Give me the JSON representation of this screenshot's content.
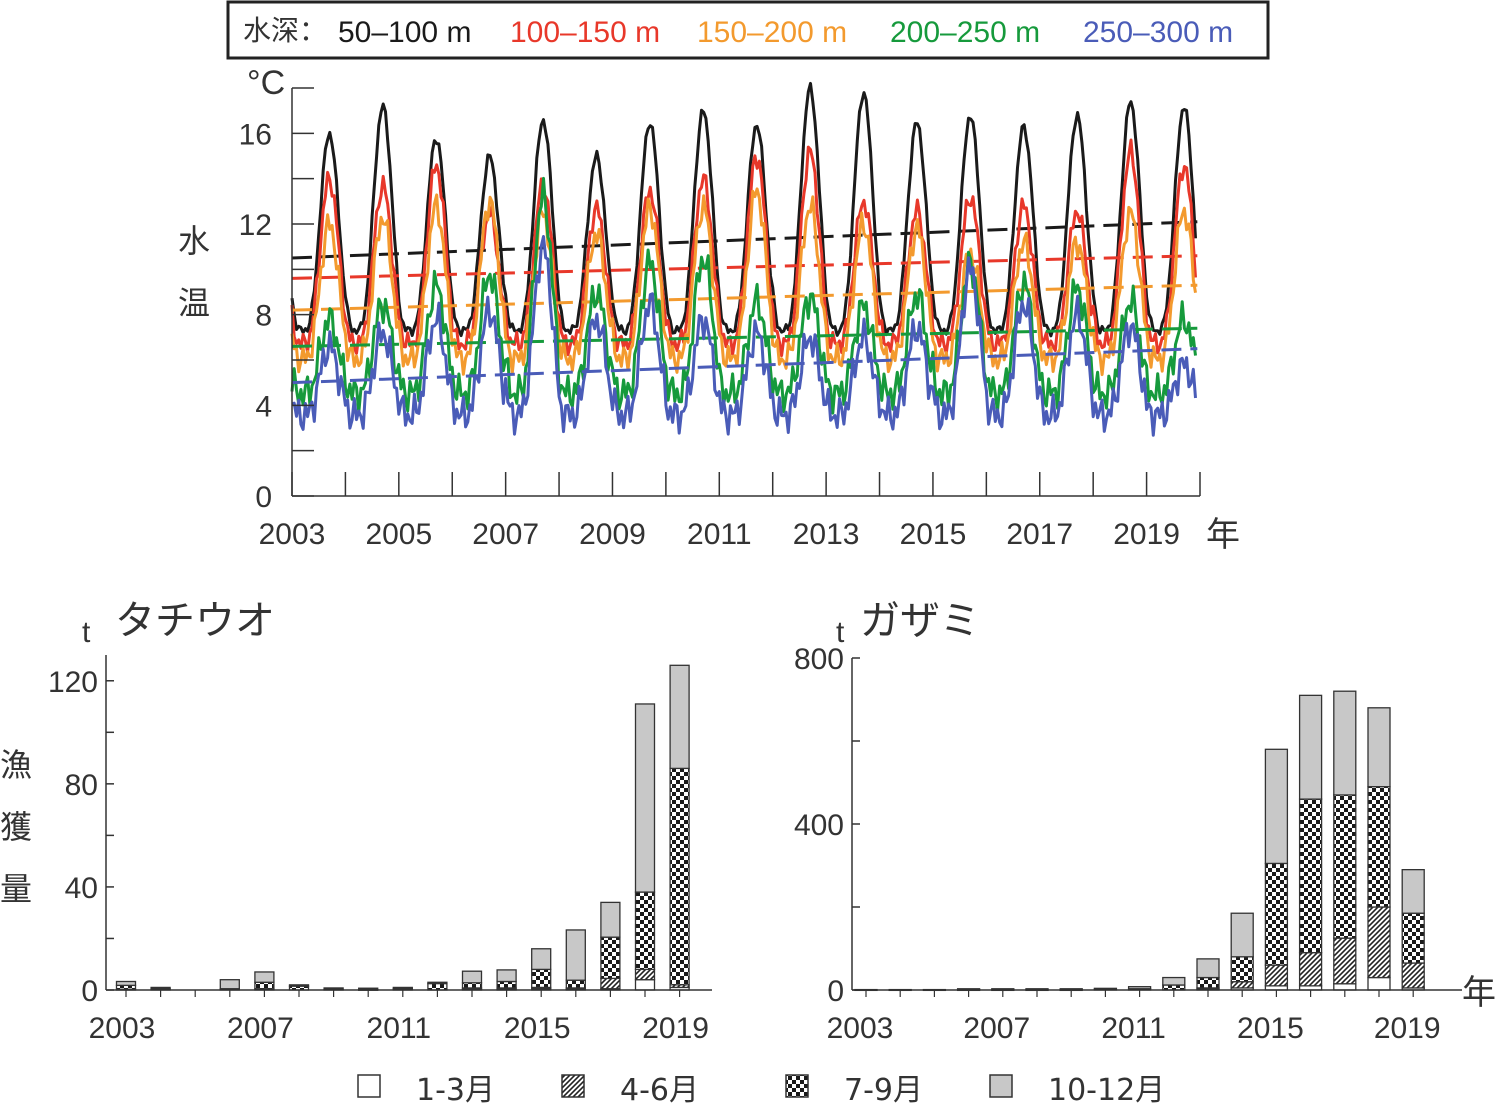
{
  "colors": {
    "depth_50_100": "#1a1a1a",
    "depth_100_150": "#e8382a",
    "depth_150_200": "#f39a2e",
    "depth_200_250": "#169a3c",
    "depth_250_300": "#4a5cb8",
    "bar_fill_10_12": "#c8c8c8",
    "axis": "#333333"
  },
  "legend_top": {
    "prefix": "水深：",
    "labels": [
      "50–100 m",
      "100–150 m",
      "150–200 m",
      "200–250 m",
      "250–300 m"
    ]
  },
  "bottom_legend": {
    "items": [
      {
        "label": "1-3月",
        "pattern": "blank"
      },
      {
        "label": "4-6月",
        "pattern": "diagonal"
      },
      {
        "label": "7-9月",
        "pattern": "checker"
      },
      {
        "label": "10-12月",
        "pattern": "gray"
      }
    ]
  },
  "chart_data": [
    {
      "type": "line",
      "unit": "°C",
      "ylabel": "水温",
      "xunit": "年",
      "xlim": [
        2003,
        2020
      ],
      "ylim": [
        0,
        18
      ],
      "yticks": [
        0,
        4,
        8,
        12,
        16
      ],
      "xtick_labels": [
        "2003",
        "2005",
        "2007",
        "2009",
        "2011",
        "2013",
        "2015",
        "2017",
        "2019"
      ],
      "grid": false,
      "legend_position": "top",
      "series": [
        {
          "name": "50–100 m",
          "summer_peak": [
            16.0,
            17.2,
            15.8,
            15.0,
            16.6,
            15.0,
            16.5,
            17.0,
            16.4,
            18.0,
            17.8,
            16.5,
            16.8,
            16.3,
            16.8,
            17.4,
            17.2
          ],
          "winter_min": 6.5,
          "trend": [
            10.5,
            12.1
          ]
        },
        {
          "name": "100–150 m",
          "summer_peak": [
            14.0,
            13.7,
            14.6,
            12.5,
            13.7,
            12.7,
            13.5,
            14.0,
            15.0,
            15.2,
            13.0,
            12.6,
            13.2,
            12.8,
            12.6,
            15.2,
            14.6
          ],
          "winter_min": 6.0,
          "trend": [
            9.6,
            10.6
          ]
        },
        {
          "name": "150–200 m",
          "summer_peak": [
            12.0,
            12.3,
            12.8,
            13.0,
            12.5,
            11.6,
            12.7,
            12.8,
            13.5,
            12.8,
            12.0,
            11.8,
            10.7,
            11.2,
            11.2,
            12.5,
            12.6
          ],
          "winter_min": 5.5,
          "trend": [
            8.2,
            9.3
          ]
        },
        {
          "name": "200–250 m",
          "summer_peak": [
            7.8,
            8.5,
            9.3,
            9.8,
            13.2,
            9.0,
            10.3,
            10.5,
            8.6,
            8.8,
            8.4,
            8.9,
            10.2,
            9.4,
            9.2,
            8.6,
            7.8
          ],
          "winter_min": 4.0,
          "trend": [
            6.6,
            7.4
          ]
        },
        {
          "name": "250–300 m",
          "summer_peak": [
            6.6,
            7.2,
            7.8,
            8.2,
            11.0,
            7.8,
            8.5,
            7.8,
            7.2,
            7.0,
            7.0,
            7.4,
            10.0,
            8.5,
            8.0,
            7.5,
            5.8
          ],
          "winter_min": 3.2,
          "trend": [
            5.0,
            6.5
          ]
        }
      ]
    },
    {
      "type": "bar",
      "title": "タチウオ",
      "unit": "t",
      "ylabel": "漁獲量",
      "ylim": [
        0,
        130
      ],
      "yticks": [
        0,
        40,
        80,
        120
      ],
      "categories": [
        "2003",
        "2004",
        "2005",
        "2006",
        "2007",
        "2008",
        "2009",
        "2010",
        "2011",
        "2012",
        "2013",
        "2014",
        "2015",
        "2016",
        "2017",
        "2018",
        "2019"
      ],
      "xtick_labels": [
        "2003",
        "2007",
        "2011",
        "2015",
        "2019"
      ],
      "stacked": true,
      "series": [
        {
          "name": "1-3月",
          "values": [
            0,
            0,
            0,
            0,
            0,
            0,
            0,
            0,
            0,
            0,
            0.3,
            0.3,
            0.5,
            0.3,
            0.5,
            4,
            1
          ]
        },
        {
          "name": "4-6月",
          "values": [
            0.3,
            0,
            0,
            0,
            0.5,
            0,
            0,
            0,
            0,
            0,
            0.5,
            0.5,
            0.5,
            0.5,
            4,
            4,
            1
          ]
        },
        {
          "name": "7-9月",
          "values": [
            1.5,
            0.5,
            0,
            0.5,
            2.5,
            1.5,
            0.3,
            0.2,
            0.5,
            2.5,
            2,
            2.5,
            7,
            3,
            16,
            30,
            84
          ]
        },
        {
          "name": "10-12月",
          "values": [
            1.5,
            0.5,
            0,
            3.5,
            4,
            0.5,
            0.5,
            0.5,
            0.5,
            0.5,
            4.5,
            4.5,
            8,
            19.5,
            13.5,
            73,
            40
          ]
        }
      ]
    },
    {
      "type": "bar",
      "title": "ガザミ",
      "unit": "t",
      "xunit": "年",
      "ylim": [
        0,
        800
      ],
      "yticks": [
        0,
        400,
        800
      ],
      "categories": [
        "2003",
        "2004",
        "2005",
        "2006",
        "2007",
        "2008",
        "2009",
        "2010",
        "2011",
        "2012",
        "2013",
        "2014",
        "2015",
        "2016",
        "2017",
        "2018",
        "2019"
      ],
      "xtick_labels": [
        "2003",
        "2007",
        "2011",
        "2015",
        "2019"
      ],
      "stacked": true,
      "series": [
        {
          "name": "1-3月",
          "values": [
            0,
            0,
            0,
            0,
            0,
            0,
            0,
            0,
            0,
            0,
            2,
            5,
            10,
            10,
            15,
            30,
            5
          ]
        },
        {
          "name": "4-6月",
          "values": [
            0,
            0,
            0,
            0,
            0,
            0,
            0,
            0,
            0,
            0,
            3,
            15,
            50,
            80,
            110,
            170,
            60
          ]
        },
        {
          "name": "7-9月",
          "values": [
            0,
            0,
            0,
            1,
            1,
            1,
            1,
            2,
            3,
            12,
            25,
            60,
            245,
            370,
            345,
            290,
            120
          ]
        },
        {
          "name": "10-12月",
          "values": [
            1,
            1,
            1,
            2,
            2,
            2,
            2,
            2,
            5,
            18,
            45,
            105,
            275,
            250,
            250,
            190,
            105
          ]
        }
      ]
    }
  ]
}
